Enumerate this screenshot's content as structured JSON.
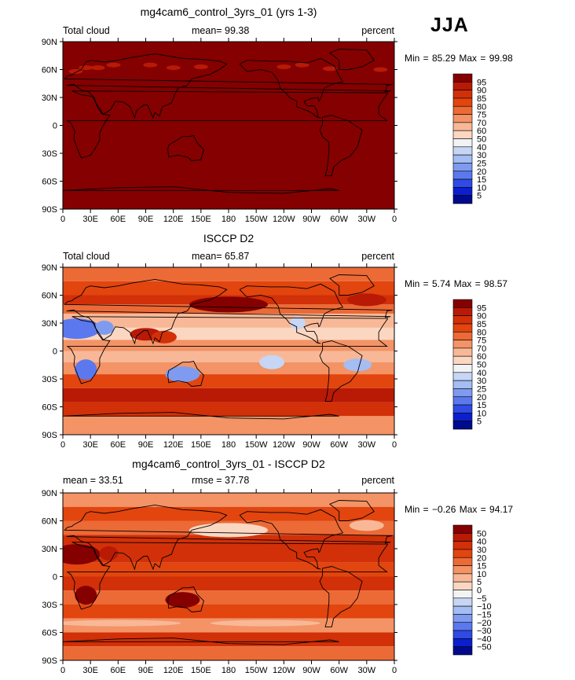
{
  "season": "JJA",
  "colors": {
    "frame": "#000000",
    "coast": "#000000"
  },
  "panels": [
    {
      "id": "model",
      "title": "mg4cam6_control_3yrs_01 (yrs 1-3)",
      "left_label": "Total cloud",
      "center_label": "mean=  99.38",
      "right_label": "percent",
      "stats": "Min =  85.29 Max =  99.98",
      "legend": [
        "95",
        "90",
        "85",
        "80",
        "75",
        "70",
        "60",
        "50",
        "40",
        "30",
        "25",
        "20",
        "15",
        "10",
        "5"
      ],
      "legend_colors": [
        "#850000",
        "#b81a06",
        "#d23008",
        "#e2450e",
        "#ec6a36",
        "#f39366",
        "#f8b897",
        "#fbd7c2",
        "#f3f3f5",
        "#c6d6f4",
        "#a4bdf2",
        "#7f9bf0",
        "#5b78ee",
        "#2f4be4",
        "#0c1fcd",
        "#000a8c"
      ]
    },
    {
      "id": "obs",
      "title": "ISCCP D2",
      "left_label": "Total cloud",
      "center_label": "mean=  65.87",
      "right_label": "percent",
      "stats": "Min =   5.74 Max =  98.57",
      "legend": [
        "95",
        "90",
        "85",
        "80",
        "75",
        "70",
        "60",
        "50",
        "40",
        "30",
        "25",
        "20",
        "15",
        "10",
        "5"
      ],
      "legend_colors": [
        "#850000",
        "#b81a06",
        "#d23008",
        "#e2450e",
        "#ec6a36",
        "#f39366",
        "#f8b897",
        "#fbd7c2",
        "#f3f3f5",
        "#c6d6f4",
        "#a4bdf2",
        "#7f9bf0",
        "#5b78ee",
        "#2f4be4",
        "#0c1fcd",
        "#000a8c"
      ]
    },
    {
      "id": "diff",
      "title": "mg4cam6_control_3yrs_01 - ISCCP D2",
      "left_label": "mean =  33.51",
      "center_label": "rmse =  37.78",
      "right_label": "percent",
      "stats": "Min =  −0.26 Max =  94.17",
      "legend": [
        "50",
        "40",
        "30",
        "20",
        "15",
        "10",
        "5",
        "0",
        "−5",
        "−10",
        "−15",
        "−20",
        "−30",
        "−40",
        "−50"
      ],
      "legend_colors": [
        "#850000",
        "#b81a06",
        "#d23008",
        "#e2450e",
        "#ec6a36",
        "#f39366",
        "#f8b897",
        "#fbd7c2",
        "#f3f3f5",
        "#c6d6f4",
        "#a4bdf2",
        "#7f9bf0",
        "#5b78ee",
        "#2f4be4",
        "#0c1fcd",
        "#000a8c"
      ]
    }
  ],
  "axes": {
    "lat_labels": [
      "90N",
      "60N",
      "30N",
      "0",
      "30S",
      "60S",
      "90S"
    ],
    "lon_labels": [
      "0",
      "30E",
      "60E",
      "90E",
      "120E",
      "150E",
      "180",
      "150W",
      "120W",
      "90W",
      "60W",
      "30W",
      "0"
    ]
  }
}
